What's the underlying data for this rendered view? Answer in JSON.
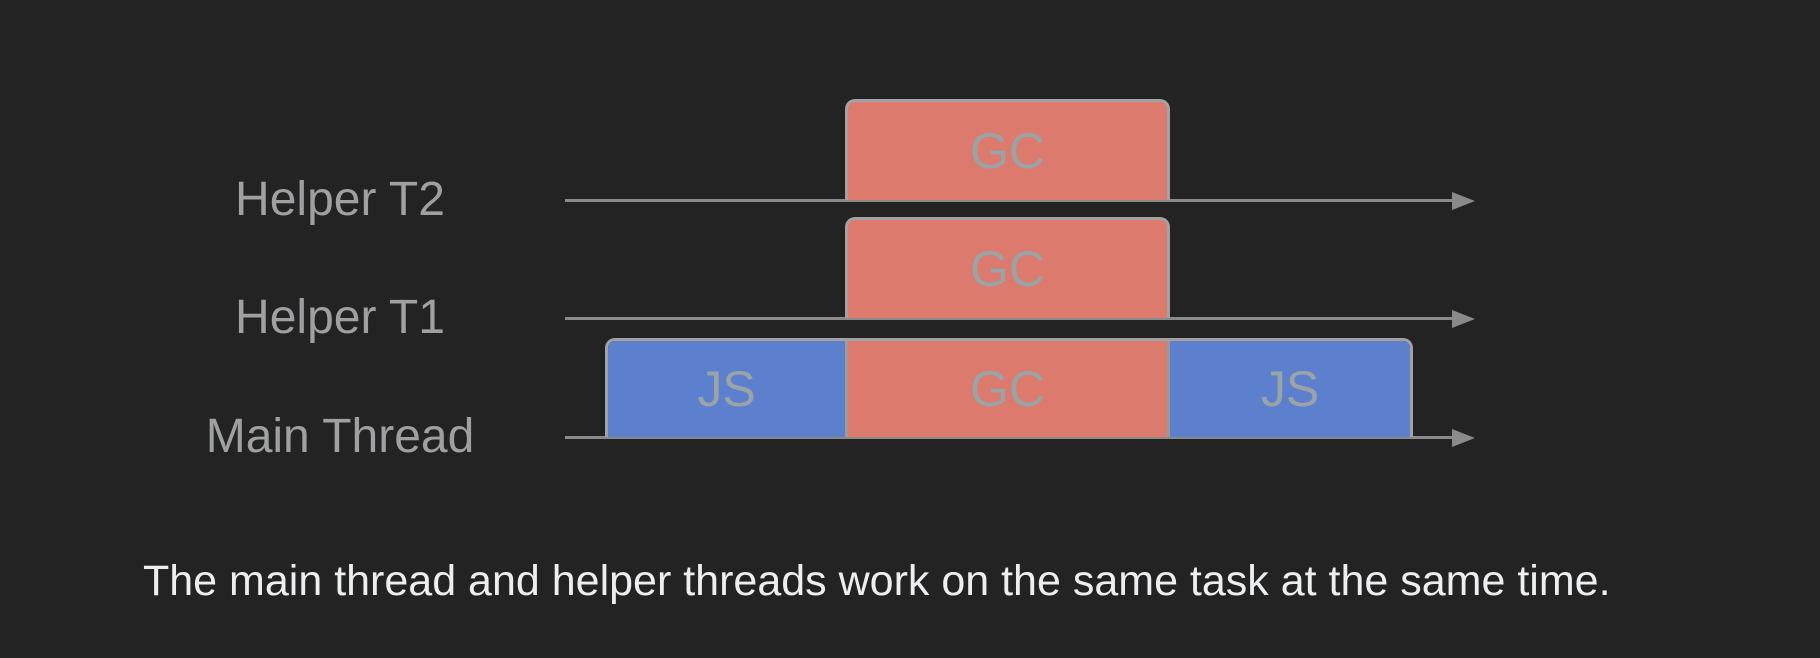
{
  "colors": {
    "background": "#232323",
    "gc_fill": "#dd7a6e",
    "js_fill": "#5c80cd",
    "block_border": "#a2a2a2",
    "block_text": "#9aa3a5",
    "timeline": "#8a8a8a",
    "label_text": "#9ea0a2",
    "caption_text": "#edeef0"
  },
  "diagram": {
    "threads": [
      {
        "label": "Helper T2",
        "blocks": [
          {
            "type": "gc",
            "label": "GC"
          }
        ]
      },
      {
        "label": "Helper T1",
        "blocks": [
          {
            "type": "gc",
            "label": "GC"
          }
        ]
      },
      {
        "label": "Main Thread",
        "blocks": [
          {
            "type": "js",
            "label": "JS"
          },
          {
            "type": "gc",
            "label": "GC"
          },
          {
            "type": "js",
            "label": "JS"
          }
        ]
      }
    ]
  },
  "caption": "The main thread and helper threads work on the same task at the same time."
}
